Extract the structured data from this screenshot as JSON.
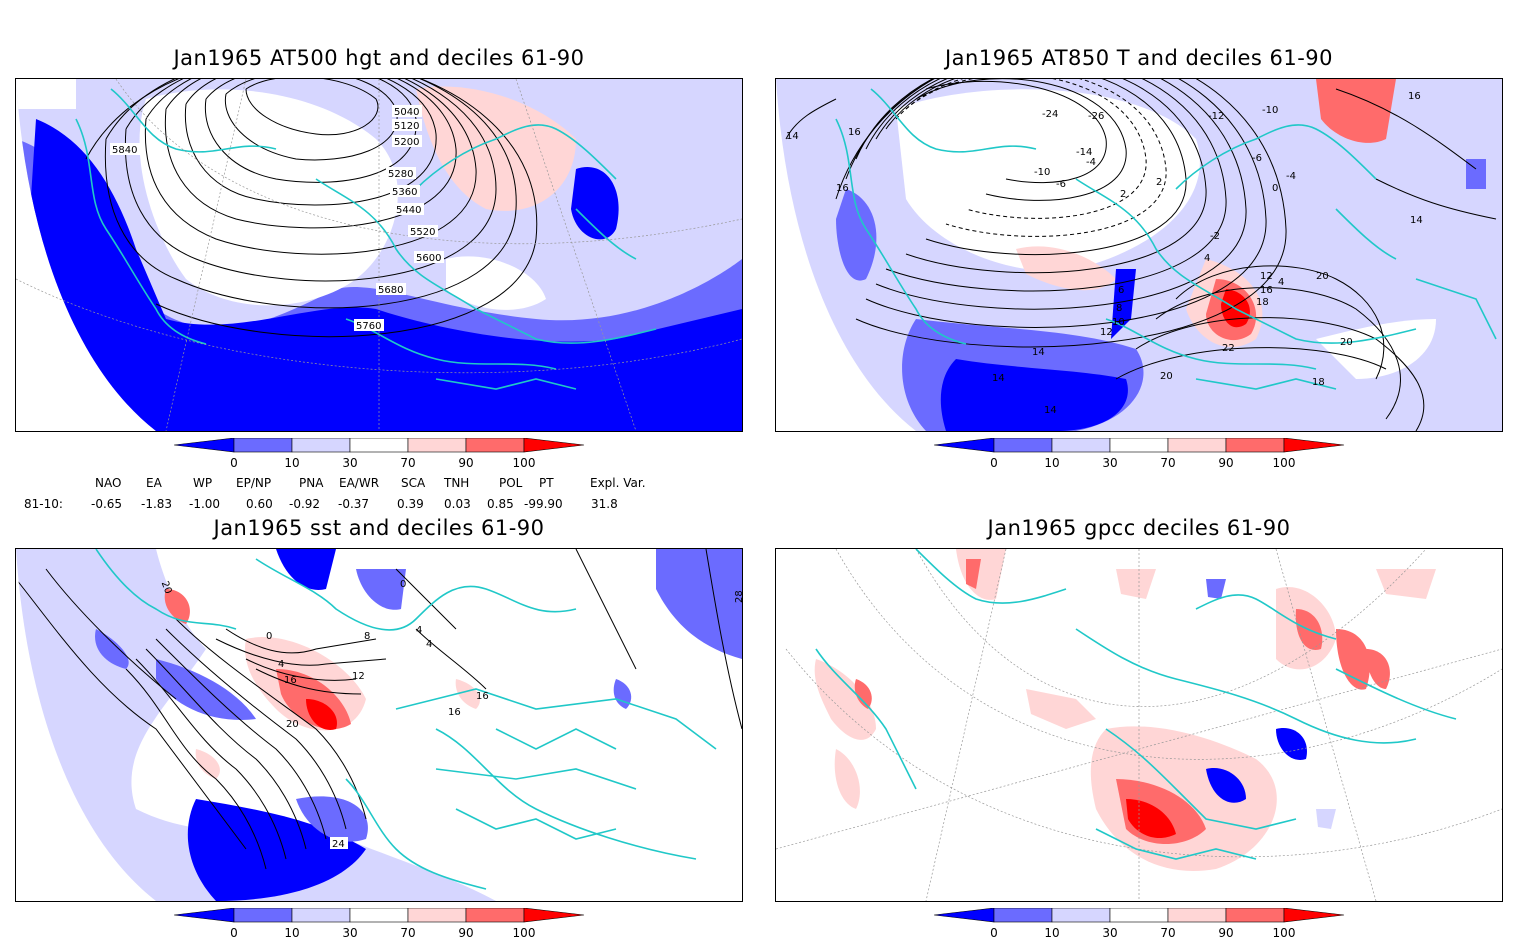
{
  "panels": [
    {
      "title": "Jan1965 AT500 hgt and deciles 61-90",
      "contour_labels": [
        "5040",
        "5120",
        "5200",
        "5280",
        "5360",
        "5440",
        "5520",
        "5600",
        "5680",
        "5760",
        "5840"
      ]
    },
    {
      "title": "Jan1965 AT850 T and deciles 61-90",
      "contour_labels": [
        "-24",
        "-26",
        "-14",
        "-10",
        "-6",
        "-4",
        "2",
        "-2",
        "-12",
        "-10",
        "-6",
        "-4",
        "0",
        "2",
        "4",
        "6",
        "8",
        "10",
        "12",
        "14",
        "14",
        "14",
        "16",
        "16",
        "16",
        "18",
        "20",
        "20",
        "22",
        "20",
        "18",
        "12",
        "4",
        "16",
        "14",
        "14"
      ]
    },
    {
      "title": "Jan1965 sst and deciles 61-90",
      "contour_labels": [
        "20",
        "0",
        "4",
        "8",
        "12",
        "16",
        "16",
        "20",
        "24",
        "28",
        "0",
        "4",
        "4",
        "16"
      ]
    },
    {
      "title": "Jan1965 gpcc deciles 61-90",
      "contour_labels": []
    }
  ],
  "colorbar": {
    "labels": [
      "0",
      "10",
      "30",
      "70",
      "90",
      "100"
    ],
    "colors": [
      "#0000ff",
      "#6b6bff",
      "#d6d6ff",
      "#ffffff",
      "#ffd6d6",
      "#ff6b6b",
      "#ff0000"
    ]
  },
  "indices": {
    "row_label": "81-10:",
    "headers": [
      "NAO",
      "EA",
      "WP",
      "EP/NP",
      "PNA",
      "EA/WR",
      "SCA",
      "TNH",
      "POL",
      "PT",
      "Expl. Var."
    ],
    "values": [
      "-0.65",
      "-1.83",
      "-1.00",
      "0.60",
      "-0.92",
      "-0.37",
      "0.39",
      "0.03",
      "0.85",
      "-99.90",
      "31.8"
    ]
  },
  "coastline_color": "#20c8c8"
}
